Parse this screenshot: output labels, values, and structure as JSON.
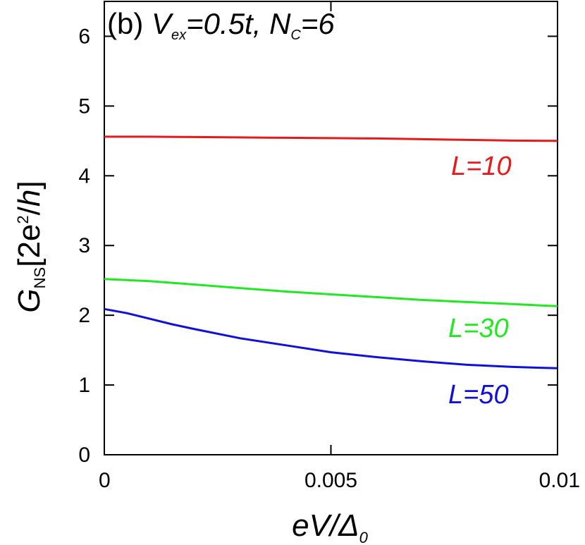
{
  "chart_data": {
    "type": "line",
    "title_parts": {
      "prefix": "(b) ",
      "v": "V",
      "v_sub": "ex",
      "v_rest": "=0.5t, ",
      "n": "N",
      "n_sub": "C",
      "n_rest": "=6"
    },
    "xlabel_parts": {
      "main": "eV/Δ",
      "sub": "0"
    },
    "ylabel_parts": {
      "g": "G",
      "g_sub": "NS",
      "bracket_open": "[2e",
      "sup": "2",
      "slash": "/",
      "h": "h",
      "bracket_close": "]"
    },
    "xlim": [
      0,
      0.01
    ],
    "ylim": [
      0,
      6.5
    ],
    "xticks": [
      0,
      0.005,
      0.01
    ],
    "xtick_labels": [
      "0",
      "0.005",
      "0.01"
    ],
    "yticks": [
      0,
      1,
      2,
      3,
      4,
      5,
      6
    ],
    "ytick_labels": [
      "0",
      "1",
      "2",
      "3",
      "4",
      "5",
      "6"
    ],
    "grid": false,
    "legend": "inline labels",
    "series": [
      {
        "name": "L=10",
        "color": "#e41a1c",
        "x": [
          0,
          0.001,
          0.002,
          0.003,
          0.004,
          0.005,
          0.006,
          0.007,
          0.008,
          0.009,
          0.01
        ],
        "y": [
          4.56,
          4.56,
          4.555,
          4.55,
          4.545,
          4.54,
          4.535,
          4.525,
          4.515,
          4.505,
          4.5
        ]
      },
      {
        "name": "L=30",
        "color": "#22e822",
        "x": [
          0,
          0.001,
          0.002,
          0.003,
          0.004,
          0.005,
          0.006,
          0.007,
          0.008,
          0.009,
          0.01
        ],
        "y": [
          2.52,
          2.49,
          2.44,
          2.39,
          2.34,
          2.3,
          2.26,
          2.22,
          2.19,
          2.16,
          2.13
        ]
      },
      {
        "name": "L=50",
        "color": "#1010d8",
        "x": [
          0,
          0.0005,
          0.001,
          0.0015,
          0.002,
          0.003,
          0.004,
          0.005,
          0.006,
          0.007,
          0.008,
          0.009,
          0.01
        ],
        "y": [
          2.09,
          2.03,
          1.95,
          1.87,
          1.8,
          1.67,
          1.57,
          1.47,
          1.4,
          1.34,
          1.29,
          1.26,
          1.24
        ]
      }
    ]
  }
}
